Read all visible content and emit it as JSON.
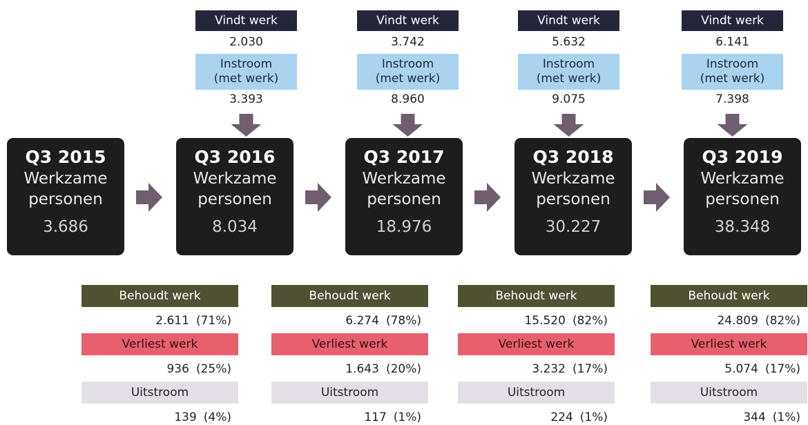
{
  "inflow": [
    {
      "vindt_label": "Vindt werk",
      "vindt": "2.030",
      "instroom_label": [
        "Instroom",
        "(met werk)"
      ],
      "instroom": "3.393"
    },
    {
      "vindt_label": "Vindt werk",
      "vindt": "3.742",
      "instroom_label": [
        "Instroom",
        "(met werk)"
      ],
      "instroom": "8.960"
    },
    {
      "vindt_label": "Vindt werk",
      "vindt": "5.632",
      "instroom_label": [
        "Instroom",
        "(met werk)"
      ],
      "instroom": "9.075"
    },
    {
      "vindt_label": "Vindt werk",
      "vindt": "6.141",
      "instroom_label": [
        "Instroom",
        "(met werk)"
      ],
      "instroom": "7.398"
    }
  ],
  "periods": [
    {
      "title": "Q3 2015",
      "lines": [
        "Werkzame",
        "personen"
      ],
      "value": "3.686"
    },
    {
      "title": "Q3 2016",
      "lines": [
        "Werkzame",
        "personen"
      ],
      "value": "8.034"
    },
    {
      "title": "Q3 2017",
      "lines": [
        "Werkzame",
        "personen"
      ],
      "value": "18.976"
    },
    {
      "title": "Q3 2018",
      "lines": [
        "Werkzame",
        "personen"
      ],
      "value": "30.227"
    },
    {
      "title": "Q3 2019",
      "lines": [
        "Werkzame",
        "personen"
      ],
      "value": "38.348"
    }
  ],
  "outflow": [
    {
      "behoudt_label": "Behoudt werk",
      "behoudt": "2.611",
      "behoudt_pct": "(71%)",
      "verliest_label": "Verliest werk",
      "verliest": "936",
      "verliest_pct": "(25%)",
      "uitstroom_label": "Uitstroom",
      "uitstroom": "139",
      "uitstroom_pct": "(4%)"
    },
    {
      "behoudt_label": "Behoudt werk",
      "behoudt": "6.274",
      "behoudt_pct": "(78%)",
      "verliest_label": "Verliest werk",
      "verliest": "1.643",
      "verliest_pct": "(20%)",
      "uitstroom_label": "Uitstroom",
      "uitstroom": "117",
      "uitstroom_pct": "(1%)"
    },
    {
      "behoudt_label": "Behoudt werk",
      "behoudt": "15.520",
      "behoudt_pct": "(82%)",
      "verliest_label": "Verliest werk",
      "verliest": "3.232",
      "verliest_pct": "(17%)",
      "uitstroom_label": "Uitstroom",
      "uitstroom": "224",
      "uitstroom_pct": "(1%)"
    },
    {
      "behoudt_label": "Behoudt werk",
      "behoudt": "24.809",
      "behoudt_pct": "(82%)",
      "verliest_label": "Verliest werk",
      "verliest": "5.074",
      "verliest_pct": "(17%)",
      "uitstroom_label": "Uitstroom",
      "uitstroom": "344",
      "uitstroom_pct": "(1%)"
    }
  ]
}
